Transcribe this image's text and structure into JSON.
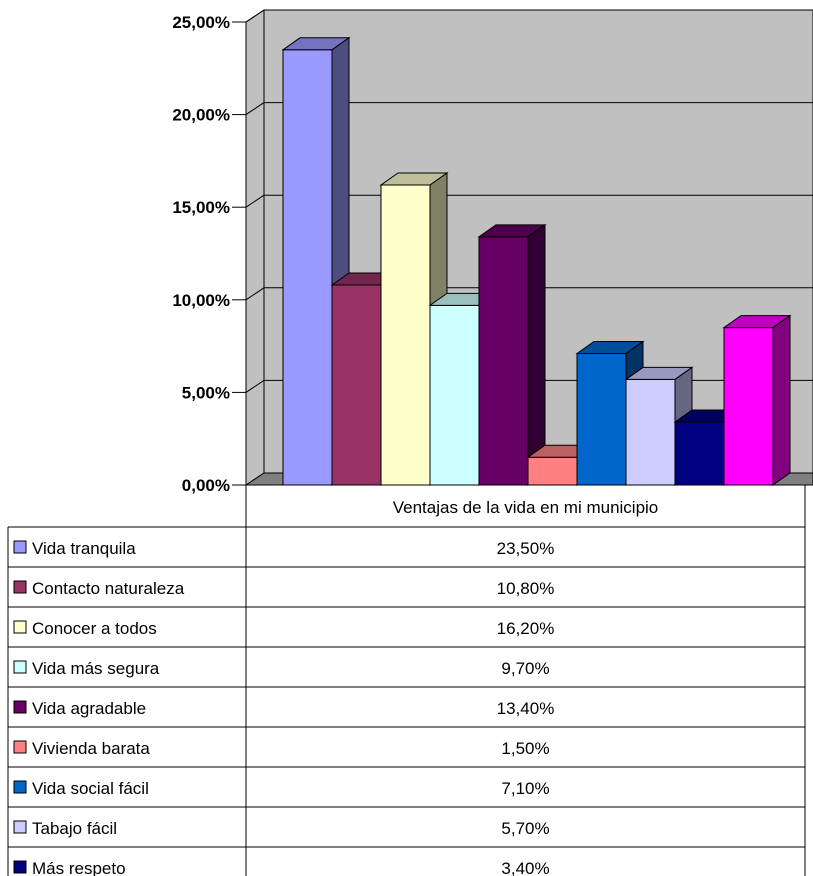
{
  "chart_data": {
    "type": "bar",
    "categories": [
      "Ventajas de la vida en mi municipio"
    ],
    "ylim": [
      0,
      25
    ],
    "yticks": [
      "0,00%",
      "5,00%",
      "10,00%",
      "15,00%",
      "20,00%",
      "25,00%"
    ],
    "grid": true,
    "legend": "table-left",
    "series": [
      {
        "name": "Vida tranquila",
        "value": 23.5,
        "label": "23,50%",
        "color": "#9999ff"
      },
      {
        "name": "Contacto naturaleza",
        "value": 10.8,
        "label": "10,80%",
        "color": "#993366"
      },
      {
        "name": "Conocer a todos",
        "value": 16.2,
        "label": "16,20%",
        "color": "#ffffcc"
      },
      {
        "name": "Vida más segura",
        "value": 9.7,
        "label": "9,70%",
        "color": "#ccffff"
      },
      {
        "name": "Vida agradable",
        "value": 13.4,
        "label": "13,40%",
        "color": "#660066"
      },
      {
        "name": "Vivienda barata",
        "value": 1.5,
        "label": "1,50%",
        "color": "#ff8080"
      },
      {
        "name": "Vida social fácil",
        "value": 7.1,
        "label": "7,10%",
        "color": "#0066cc"
      },
      {
        "name": "Tabajo fácil",
        "value": 5.7,
        "label": "5,70%",
        "color": "#ccccff"
      },
      {
        "name": "Más respeto",
        "value": 3.4,
        "label": "3,40%",
        "color": "#000080"
      },
      {
        "name": "",
        "value": 8.5,
        "label": "",
        "color": "#ff00ff"
      }
    ]
  }
}
